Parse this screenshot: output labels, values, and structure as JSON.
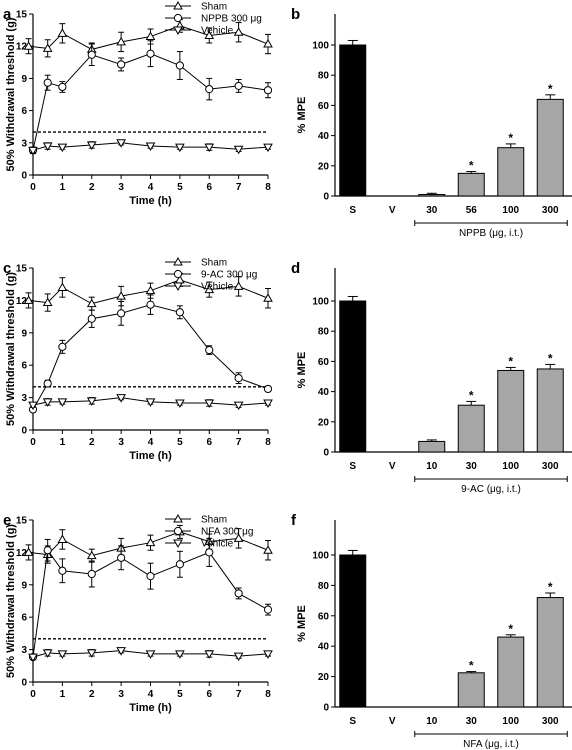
{
  "chart_data": [
    {
      "panel": "a",
      "type": "line",
      "xlabel": "Time (h)",
      "ylabel": "50% Withdrawal threshold (g)",
      "xlim": [
        0,
        8
      ],
      "ylim": [
        0,
        15
      ],
      "x_ticks": [
        "0",
        "1",
        "2",
        "3",
        "4",
        "5",
        "6",
        "7",
        "8"
      ],
      "y_ticks": [
        "0",
        "3",
        "6",
        "9",
        "12",
        "15"
      ],
      "reference_line": 4,
      "legend_position": "top-center",
      "series": [
        {
          "name": "Sham",
          "marker": "triangle-up",
          "x": [
            -0.15,
            0.5,
            1,
            2,
            3,
            4,
            5,
            6,
            7,
            8
          ],
          "y": [
            12.0,
            11.8,
            13.2,
            11.7,
            12.4,
            12.9,
            13.9,
            13.0,
            13.3,
            12.2
          ],
          "err": [
            0.7,
            0.8,
            0.9,
            0.6,
            0.9,
            0.7,
            0.6,
            0.7,
            0.9,
            0.9
          ]
        },
        {
          "name": "NPPB 300 μg",
          "marker": "circle",
          "x": [
            0,
            0.5,
            1,
            2,
            3,
            4,
            5,
            6,
            7,
            8
          ],
          "y": [
            2.3,
            8.6,
            8.2,
            11.2,
            10.3,
            11.3,
            10.2,
            8.0,
            8.3,
            7.9
          ],
          "err": [
            0.3,
            0.7,
            0.5,
            1.0,
            0.6,
            1.2,
            1.3,
            1.0,
            0.6,
            0.7
          ]
        },
        {
          "name": "Vehicle",
          "marker": "triangle-down",
          "x": [
            0,
            0.5,
            1,
            2,
            3,
            4,
            5,
            6,
            7,
            8
          ],
          "y": [
            2.3,
            2.7,
            2.6,
            2.8,
            3.0,
            2.7,
            2.6,
            2.6,
            2.4,
            2.6
          ],
          "err": [
            0.2,
            0.3,
            0.2,
            0.3,
            0.2,
            0.2,
            0.2,
            0.3,
            0.2,
            0.2
          ]
        }
      ]
    },
    {
      "panel": "b",
      "type": "bar",
      "ylabel": "% MPE",
      "ylim": [
        0,
        100
      ],
      "y_ticks": [
        "0",
        "20",
        "40",
        "60",
        "80",
        "100"
      ],
      "categories": [
        "S",
        "V",
        "30",
        "56",
        "100",
        "300"
      ],
      "values": [
        100,
        0,
        1,
        15,
        32,
        64
      ],
      "err": [
        3,
        0,
        0.8,
        1.2,
        2.5,
        3
      ],
      "colors": [
        "#000000",
        "#ffffff",
        "#a6a6a6",
        "#a6a6a6",
        "#a6a6a6",
        "#a6a6a6"
      ],
      "significant": [
        false,
        false,
        false,
        true,
        true,
        true
      ],
      "significance_mark": "*",
      "bracket_label": "NPPB (μg, i.t.)",
      "bracket_from": 2,
      "bracket_to": 5
    },
    {
      "panel": "c",
      "type": "line",
      "xlabel": "Time (h)",
      "ylabel": "50% Withdrawal threshold (g)",
      "xlim": [
        0,
        8
      ],
      "ylim": [
        0,
        15
      ],
      "x_ticks": [
        "0",
        "1",
        "2",
        "3",
        "4",
        "5",
        "6",
        "7",
        "8"
      ],
      "y_ticks": [
        "0",
        "3",
        "6",
        "9",
        "12",
        "15"
      ],
      "reference_line": 4,
      "legend_position": "top-center",
      "series": [
        {
          "name": "Sham",
          "marker": "triangle-up",
          "x": [
            -0.15,
            0.5,
            1,
            2,
            3,
            4,
            5,
            6,
            7,
            8
          ],
          "y": [
            12.0,
            11.8,
            13.2,
            11.7,
            12.4,
            12.9,
            13.9,
            13.0,
            13.3,
            12.2
          ],
          "err": [
            0.7,
            0.8,
            0.9,
            0.6,
            0.9,
            0.7,
            0.6,
            0.7,
            0.9,
            0.9
          ]
        },
        {
          "name": "9-AC 300 μg",
          "marker": "circle",
          "x": [
            0,
            0.5,
            1,
            2,
            3,
            4,
            5,
            6,
            7,
            8
          ],
          "y": [
            1.9,
            4.3,
            7.7,
            10.3,
            10.8,
            11.6,
            10.9,
            7.4,
            4.8,
            3.8
          ],
          "err": [
            0.2,
            0.3,
            0.6,
            0.8,
            1.1,
            0.9,
            0.6,
            0.4,
            0.5,
            0.2
          ]
        },
        {
          "name": "Vehicle",
          "marker": "triangle-down",
          "x": [
            0,
            0.5,
            1,
            2,
            3,
            4,
            5,
            6,
            7,
            8
          ],
          "y": [
            2.3,
            2.6,
            2.6,
            2.7,
            3.0,
            2.6,
            2.5,
            2.5,
            2.3,
            2.5
          ],
          "err": [
            0.2,
            0.3,
            0.2,
            0.3,
            0.2,
            0.2,
            0.2,
            0.3,
            0.2,
            0.2
          ]
        }
      ]
    },
    {
      "panel": "d",
      "type": "bar",
      "ylabel": "% MPE",
      "ylim": [
        0,
        100
      ],
      "y_ticks": [
        "0",
        "20",
        "40",
        "60",
        "80",
        "100"
      ],
      "categories": [
        "S",
        "V",
        "10",
        "30",
        "100",
        "300"
      ],
      "values": [
        100,
        0,
        7,
        31,
        54,
        55
      ],
      "err": [
        3,
        0,
        1,
        2.5,
        2,
        3
      ],
      "colors": [
        "#000000",
        "#ffffff",
        "#a6a6a6",
        "#a6a6a6",
        "#a6a6a6",
        "#a6a6a6"
      ],
      "significant": [
        false,
        false,
        false,
        true,
        true,
        true
      ],
      "significance_mark": "*",
      "bracket_label": "9-AC (μg, i.t.)",
      "bracket_from": 2,
      "bracket_to": 5
    },
    {
      "panel": "e",
      "type": "line",
      "xlabel": "Time (h)",
      "ylabel": "50% Withdrawal threshold (g)",
      "xlim": [
        0,
        8
      ],
      "ylim": [
        0,
        15
      ],
      "x_ticks": [
        "0",
        "1",
        "2",
        "3",
        "4",
        "5",
        "6",
        "7",
        "8"
      ],
      "y_ticks": [
        "0",
        "3",
        "6",
        "9",
        "12",
        "15"
      ],
      "reference_line": 4,
      "legend_position": "top-center",
      "series": [
        {
          "name": "Sham",
          "marker": "triangle-up",
          "x": [
            -0.15,
            0.5,
            1,
            2,
            3,
            4,
            5,
            6,
            7,
            8
          ],
          "y": [
            12.0,
            11.8,
            13.2,
            11.7,
            12.4,
            12.9,
            13.9,
            13.0,
            13.3,
            12.2
          ],
          "err": [
            0.7,
            0.8,
            0.9,
            0.6,
            0.9,
            0.7,
            0.6,
            0.7,
            0.9,
            0.9
          ]
        },
        {
          "name": "NFA 300 μg",
          "marker": "circle",
          "x": [
            0,
            0.5,
            1,
            2,
            3,
            4,
            5,
            6,
            7,
            8
          ],
          "y": [
            2.3,
            12.2,
            10.3,
            10.0,
            11.5,
            9.8,
            10.9,
            12.0,
            8.2,
            6.7
          ],
          "err": [
            0.2,
            1.0,
            1.1,
            1.2,
            1.1,
            1.2,
            1.2,
            1.3,
            0.5,
            0.5
          ]
        },
        {
          "name": "Vehicle",
          "marker": "triangle-down",
          "x": [
            0,
            0.5,
            1,
            2,
            3,
            4,
            5,
            6,
            7,
            8
          ],
          "y": [
            2.3,
            2.7,
            2.6,
            2.7,
            2.9,
            2.6,
            2.6,
            2.6,
            2.4,
            2.6
          ],
          "err": [
            0.2,
            0.3,
            0.2,
            0.3,
            0.2,
            0.2,
            0.2,
            0.3,
            0.2,
            0.2
          ]
        }
      ]
    },
    {
      "panel": "f",
      "type": "bar",
      "ylabel": "% MPE",
      "ylim": [
        0,
        100
      ],
      "y_ticks": [
        "0",
        "20",
        "40",
        "60",
        "80",
        "100"
      ],
      "categories": [
        "S",
        "V",
        "10",
        "30",
        "100",
        "300"
      ],
      "values": [
        100,
        0,
        0,
        22.5,
        46,
        72
      ],
      "err": [
        3,
        0,
        0,
        0.8,
        1.5,
        3
      ],
      "colors": [
        "#000000",
        "#ffffff",
        "#a6a6a6",
        "#a6a6a6",
        "#a6a6a6",
        "#a6a6a6"
      ],
      "significant": [
        false,
        false,
        false,
        true,
        true,
        true
      ],
      "significance_mark": "*",
      "bracket_label": "NFA (μg, i.t.)",
      "bracket_from": 2,
      "bracket_to": 5
    }
  ]
}
